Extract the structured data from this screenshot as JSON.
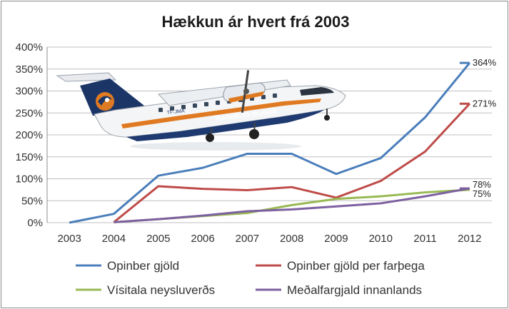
{
  "chart_data": {
    "type": "line",
    "title": "Hækkun ár hvert frá 2003",
    "categories": [
      "2003",
      "2004",
      "2005",
      "2006",
      "2007",
      "2008",
      "2009",
      "2010",
      "2011",
      "2012"
    ],
    "ylim": [
      0,
      400
    ],
    "yticks": [
      0,
      50,
      100,
      150,
      200,
      250,
      300,
      350,
      400
    ],
    "ytick_labels": [
      "0%",
      "50%",
      "100%",
      "150%",
      "200%",
      "250%",
      "300%",
      "350%",
      "400%"
    ],
    "grid": "horizontal",
    "legend_position": "bottom",
    "series": [
      {
        "name": "Opinber gjöld",
        "color": "#4a7ebb",
        "values": [
          0,
          20,
          107,
          125,
          157,
          157,
          111,
          147,
          240,
          364
        ],
        "end_label": "364%"
      },
      {
        "name": "Opinber gjöld per farþega",
        "color": "#be4b48",
        "values": [
          null,
          1,
          83,
          77,
          74,
          81,
          57,
          95,
          162,
          271
        ],
        "end_label": "271%"
      },
      {
        "name": "Vísitala neysluverðs",
        "color": "#98b954",
        "values": [
          null,
          1,
          8,
          15,
          22,
          40,
          54,
          60,
          69,
          75
        ],
        "end_label": "75%"
      },
      {
        "name": "Meðalfargjald innanlands",
        "color": "#7d60a0",
        "values": [
          null,
          1,
          8,
          16,
          26,
          30,
          37,
          44,
          60,
          78
        ],
        "end_label": "78%"
      }
    ]
  },
  "image": {
    "label": "airplane-photo",
    "registration": "TF-JMA",
    "livery_text": "FLUGFÉLAG ÍSLANDS",
    "livery_colors": {
      "body": "#f4f5f7",
      "stripe": "#e07a22",
      "belly": "#1e3a70",
      "tail_dark": "#1b3567"
    }
  }
}
